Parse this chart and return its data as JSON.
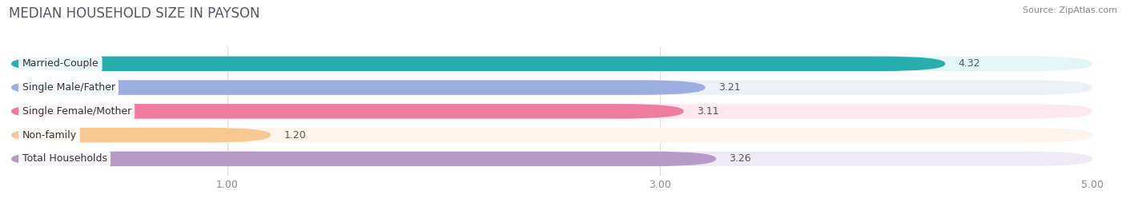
{
  "title": "MEDIAN HOUSEHOLD SIZE IN PAYSON",
  "source": "Source: ZipAtlas.com",
  "categories": [
    "Married-Couple",
    "Single Male/Father",
    "Single Female/Mother",
    "Non-family",
    "Total Households"
  ],
  "values": [
    4.32,
    3.21,
    3.11,
    1.2,
    3.26
  ],
  "value_labels": [
    "4.32",
    "3.21",
    "3.11",
    "1.20",
    "3.26"
  ],
  "bar_colors": [
    "#29aeae",
    "#9baedd",
    "#f07aa0",
    "#f5c990",
    "#b89ac8"
  ],
  "bar_bg_colors": [
    "#e4f5f5",
    "#eef0f8",
    "#fde8f0",
    "#fdf5ea",
    "#f0eaf6"
  ],
  "xlim": [
    0,
    5.0
  ],
  "xticks": [
    1.0,
    3.0,
    5.0
  ],
  "xtick_labels": [
    "1.00",
    "3.00",
    "5.00"
  ],
  "title_fontsize": 12,
  "label_fontsize": 9,
  "value_fontsize": 9,
  "bar_height": 0.62,
  "bar_gap": 1.0,
  "background_color": "#ffffff",
  "grid_color": "#dddddd",
  "tick_color": "#888888"
}
